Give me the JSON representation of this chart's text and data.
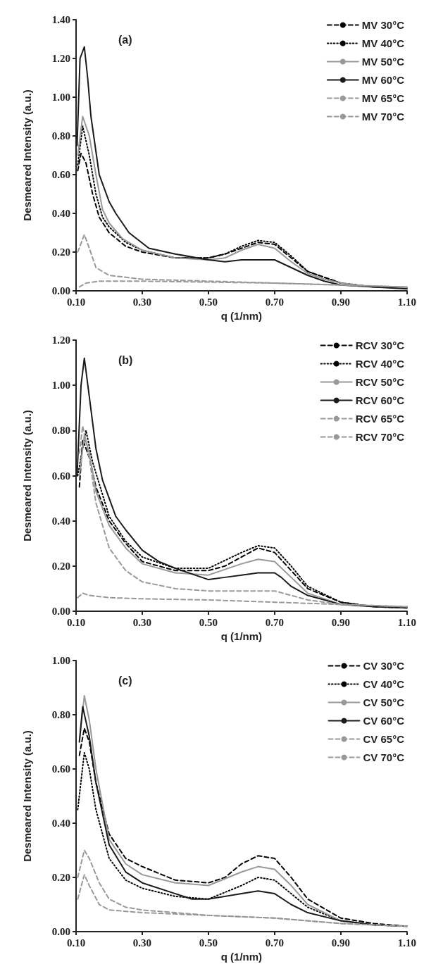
{
  "chart_data": [
    {
      "type": "line",
      "annotations": [
        "(a)"
      ],
      "xlabel": "q (1/nm)",
      "ylabel": "Desmeared Intensity (a.u.)",
      "legend": "top right",
      "marker": "none",
      "xlim": [
        0.1,
        1.1
      ],
      "xticks": [
        {
          "value": 0.1,
          "label": "0.10"
        },
        {
          "value": 0.3,
          "label": "0.30"
        },
        {
          "value": 0.5,
          "label": "0.50"
        },
        {
          "value": 0.7,
          "label": "0.70"
        },
        {
          "value": 0.9,
          "label": "0.90"
        },
        {
          "value": 1.1,
          "label": "1.10"
        }
      ],
      "ylim": [
        0,
        1.4
      ],
      "yticks": [
        {
          "value": 0,
          "label": "0.00"
        },
        {
          "value": 0.2,
          "label": "0.20"
        },
        {
          "value": 0.4,
          "label": "0.40"
        },
        {
          "value": 0.6,
          "label": "0.60"
        },
        {
          "value": 0.8,
          "label": "0.80"
        },
        {
          "value": 1,
          "label": "1.00"
        },
        {
          "value": 1.2,
          "label": "1.20"
        },
        {
          "value": 1.4,
          "label": "1.40"
        }
      ],
      "series": [
        {
          "name": "MV 30°C",
          "color": "#000000",
          "line_style": "dashed",
          "x": [
            0.105,
            0.115,
            0.13,
            0.15,
            0.17,
            0.2,
            0.25,
            0.3,
            0.4,
            0.5,
            0.55,
            0.6,
            0.65,
            0.7,
            0.75,
            0.8,
            0.85,
            0.9,
            1.0,
            1.1
          ],
          "values": [
            0.62,
            0.71,
            0.66,
            0.5,
            0.38,
            0.3,
            0.23,
            0.2,
            0.17,
            0.17,
            0.19,
            0.22,
            0.25,
            0.24,
            0.17,
            0.1,
            0.07,
            0.04,
            0.02,
            0.015
          ]
        },
        {
          "name": "MV 40°C",
          "color": "#000000",
          "line_style": "dotted",
          "x": [
            0.105,
            0.12,
            0.14,
            0.16,
            0.18,
            0.2,
            0.25,
            0.3,
            0.4,
            0.5,
            0.55,
            0.6,
            0.65,
            0.7,
            0.75,
            0.8,
            0.85,
            0.9,
            1.0,
            1.1
          ],
          "values": [
            0.65,
            0.85,
            0.7,
            0.5,
            0.38,
            0.33,
            0.25,
            0.21,
            0.17,
            0.17,
            0.19,
            0.23,
            0.26,
            0.25,
            0.18,
            0.1,
            0.07,
            0.04,
            0.02,
            0.015
          ]
        },
        {
          "name": "MV 50°C",
          "color": "#999999",
          "line_style": "solid",
          "x": [
            0.105,
            0.12,
            0.14,
            0.16,
            0.18,
            0.2,
            0.24,
            0.3,
            0.4,
            0.5,
            0.55,
            0.6,
            0.65,
            0.7,
            0.75,
            0.8,
            0.85,
            0.9,
            1.0,
            1.1
          ],
          "values": [
            0.7,
            0.9,
            0.8,
            0.6,
            0.42,
            0.35,
            0.27,
            0.21,
            0.17,
            0.16,
            0.17,
            0.21,
            0.24,
            0.22,
            0.15,
            0.09,
            0.06,
            0.04,
            0.02,
            0.015
          ]
        },
        {
          "name": "MV 60°C",
          "color": "#1a1a1a",
          "line_style": "solid",
          "x": [
            0.103,
            0.112,
            0.125,
            0.135,
            0.145,
            0.17,
            0.2,
            0.22,
            0.26,
            0.32,
            0.4,
            0.5,
            0.55,
            0.6,
            0.65,
            0.7,
            0.75,
            0.8,
            0.85,
            0.9,
            1.0,
            1.1
          ],
          "values": [
            0.75,
            1.2,
            1.26,
            1.1,
            0.9,
            0.6,
            0.46,
            0.4,
            0.3,
            0.22,
            0.19,
            0.16,
            0.15,
            0.16,
            0.16,
            0.16,
            0.12,
            0.08,
            0.05,
            0.03,
            0.02,
            0.01
          ]
        },
        {
          "name": "MV 65°C",
          "color": "#999999",
          "line_style": "dashed",
          "x": [
            0.105,
            0.125,
            0.14,
            0.16,
            0.2,
            0.3,
            0.5,
            0.7,
            0.9,
            1.1
          ],
          "values": [
            0.2,
            0.29,
            0.22,
            0.12,
            0.08,
            0.06,
            0.05,
            0.04,
            0.03,
            0.02
          ]
        },
        {
          "name": "MV 70°C",
          "color": "#999999",
          "line_style": "dashed",
          "x": [
            0.11,
            0.13,
            0.17,
            0.3,
            0.5,
            0.7,
            0.9,
            1.1
          ],
          "values": [
            0.02,
            0.04,
            0.05,
            0.05,
            0.045,
            0.04,
            0.03,
            0.02
          ]
        }
      ]
    },
    {
      "type": "line",
      "annotations": [
        "(b)"
      ],
      "xlabel": "q (1/nm)",
      "ylabel": "Desmeared Intensity (a.u.)",
      "legend": "top right",
      "marker": "none",
      "xlim": [
        0.1,
        1.1
      ],
      "xticks": [
        {
          "value": 0.1,
          "label": "0.10"
        },
        {
          "value": 0.3,
          "label": "0.30"
        },
        {
          "value": 0.5,
          "label": "0.50"
        },
        {
          "value": 0.7,
          "label": "0.70"
        },
        {
          "value": 0.9,
          "label": "0.90"
        },
        {
          "value": 1.1,
          "label": "1.10"
        }
      ],
      "ylim": [
        0,
        1.2
      ],
      "yticks": [
        {
          "value": 0,
          "label": "0.00"
        },
        {
          "value": 0.2,
          "label": "0.20"
        },
        {
          "value": 0.4,
          "label": "0.40"
        },
        {
          "value": 0.6,
          "label": "0.60"
        },
        {
          "value": 0.8,
          "label": "0.80"
        },
        {
          "value": 1,
          "label": "1.00"
        },
        {
          "value": 1.2,
          "label": "1.20"
        }
      ],
      "series": [
        {
          "name": "RCV 30°C",
          "color": "#000000",
          "line_style": "dashed",
          "x": [
            0.11,
            0.12,
            0.14,
            0.16,
            0.2,
            0.25,
            0.3,
            0.4,
            0.5,
            0.55,
            0.6,
            0.65,
            0.7,
            0.75,
            0.8,
            0.9,
            1.0,
            1.1
          ],
          "values": [
            0.55,
            0.76,
            0.68,
            0.55,
            0.4,
            0.3,
            0.22,
            0.18,
            0.18,
            0.2,
            0.24,
            0.28,
            0.26,
            0.18,
            0.1,
            0.04,
            0.02,
            0.015
          ]
        },
        {
          "name": "RCV 40°C",
          "color": "#000000",
          "line_style": "dotted",
          "x": [
            0.105,
            0.13,
            0.15,
            0.2,
            0.25,
            0.3,
            0.4,
            0.5,
            0.6,
            0.65,
            0.7,
            0.75,
            0.8,
            0.9,
            1.0,
            1.1
          ],
          "values": [
            0.6,
            0.8,
            0.66,
            0.42,
            0.31,
            0.24,
            0.19,
            0.19,
            0.26,
            0.29,
            0.28,
            0.2,
            0.11,
            0.04,
            0.02,
            0.015
          ]
        },
        {
          "name": "RCV 50°C",
          "color": "#999999",
          "line_style": "solid",
          "x": [
            0.11,
            0.125,
            0.14,
            0.16,
            0.2,
            0.25,
            0.3,
            0.4,
            0.5,
            0.6,
            0.65,
            0.7,
            0.75,
            0.8,
            0.9,
            1.1
          ],
          "values": [
            0.6,
            0.78,
            0.7,
            0.53,
            0.38,
            0.28,
            0.21,
            0.17,
            0.16,
            0.21,
            0.23,
            0.22,
            0.15,
            0.08,
            0.03,
            0.015
          ]
        },
        {
          "name": "RCV 60°C",
          "color": "#1a1a1a",
          "line_style": "solid",
          "x": [
            0.103,
            0.115,
            0.125,
            0.14,
            0.16,
            0.18,
            0.2,
            0.22,
            0.25,
            0.3,
            0.35,
            0.4,
            0.5,
            0.55,
            0.6,
            0.65,
            0.7,
            0.72,
            0.75,
            0.8,
            0.9,
            1.0,
            1.1
          ],
          "values": [
            0.6,
            1.0,
            1.12,
            0.95,
            0.72,
            0.58,
            0.5,
            0.42,
            0.36,
            0.27,
            0.22,
            0.19,
            0.14,
            0.15,
            0.16,
            0.17,
            0.17,
            0.15,
            0.11,
            0.07,
            0.03,
            0.02,
            0.015
          ]
        },
        {
          "name": "RCV 65°C",
          "color": "#999999",
          "line_style": "dashed",
          "x": [
            0.11,
            0.12,
            0.14,
            0.16,
            0.2,
            0.25,
            0.3,
            0.4,
            0.5,
            0.6,
            0.7,
            0.75,
            0.8,
            0.9,
            1.1
          ],
          "values": [
            0.7,
            0.82,
            0.68,
            0.48,
            0.28,
            0.18,
            0.13,
            0.1,
            0.09,
            0.09,
            0.09,
            0.07,
            0.05,
            0.03,
            0.02
          ]
        },
        {
          "name": "RCV 70°C",
          "color": "#999999",
          "line_style": "dashed",
          "x": [
            0.105,
            0.12,
            0.14,
            0.2,
            0.3,
            0.5,
            0.7,
            0.9,
            1.1
          ],
          "values": [
            0.06,
            0.08,
            0.07,
            0.06,
            0.055,
            0.05,
            0.04,
            0.03,
            0.02
          ]
        }
      ]
    },
    {
      "type": "line",
      "annotations": [
        "(c)"
      ],
      "xlabel": "q (1/nm)",
      "ylabel": "Desmeared Intensity (a.u.)",
      "legend": "top right",
      "marker": "none",
      "xlim": [
        0.1,
        1.1
      ],
      "xticks": [
        {
          "value": 0.1,
          "label": "0.10"
        },
        {
          "value": 0.3,
          "label": "0.30"
        },
        {
          "value": 0.5,
          "label": "0.50"
        },
        {
          "value": 0.7,
          "label": "0.70"
        },
        {
          "value": 0.9,
          "label": "0.90"
        },
        {
          "value": 1.1,
          "label": "1.10"
        }
      ],
      "ylim": [
        0,
        1
      ],
      "yticks": [
        {
          "value": 0,
          "label": "0.00"
        },
        {
          "value": 0.2,
          "label": "0.20"
        },
        {
          "value": 0.4,
          "label": "0.40"
        },
        {
          "value": 0.6,
          "label": "0.60"
        },
        {
          "value": 0.8,
          "label": "0.80"
        },
        {
          "value": 1,
          "label": "1.00"
        }
      ],
      "series": [
        {
          "name": "CV 30°C",
          "color": "#000000",
          "line_style": "dashed",
          "x": [
            0.11,
            0.125,
            0.14,
            0.16,
            0.2,
            0.25,
            0.3,
            0.4,
            0.5,
            0.55,
            0.6,
            0.65,
            0.7,
            0.75,
            0.8,
            0.9,
            1.0,
            1.1
          ],
          "values": [
            0.65,
            0.75,
            0.7,
            0.55,
            0.36,
            0.27,
            0.24,
            0.19,
            0.18,
            0.2,
            0.25,
            0.28,
            0.27,
            0.2,
            0.12,
            0.05,
            0.03,
            0.02
          ]
        },
        {
          "name": "CV 40°C",
          "color": "#000000",
          "line_style": "dotted",
          "x": [
            0.105,
            0.125,
            0.14,
            0.16,
            0.2,
            0.25,
            0.3,
            0.4,
            0.5,
            0.6,
            0.65,
            0.7,
            0.75,
            0.8,
            0.9,
            1.0,
            1.1
          ],
          "values": [
            0.45,
            0.66,
            0.6,
            0.45,
            0.27,
            0.19,
            0.16,
            0.13,
            0.12,
            0.17,
            0.2,
            0.19,
            0.14,
            0.09,
            0.04,
            0.025,
            0.02
          ]
        },
        {
          "name": "CV 50°C",
          "color": "#999999",
          "line_style": "solid",
          "x": [
            0.11,
            0.125,
            0.14,
            0.16,
            0.2,
            0.25,
            0.3,
            0.4,
            0.5,
            0.6,
            0.65,
            0.7,
            0.75,
            0.8,
            0.9,
            1.0,
            1.1
          ],
          "values": [
            0.7,
            0.87,
            0.78,
            0.6,
            0.34,
            0.25,
            0.21,
            0.18,
            0.17,
            0.22,
            0.24,
            0.23,
            0.17,
            0.1,
            0.04,
            0.025,
            0.02
          ]
        },
        {
          "name": "CV 60°C",
          "color": "#1a1a1a",
          "line_style": "solid",
          "x": [
            0.11,
            0.12,
            0.14,
            0.16,
            0.2,
            0.25,
            0.3,
            0.4,
            0.45,
            0.5,
            0.6,
            0.65,
            0.7,
            0.75,
            0.8,
            0.9,
            1.0,
            1.1
          ],
          "values": [
            0.7,
            0.83,
            0.72,
            0.55,
            0.32,
            0.22,
            0.18,
            0.14,
            0.12,
            0.12,
            0.14,
            0.15,
            0.14,
            0.1,
            0.07,
            0.04,
            0.025,
            0.02
          ]
        },
        {
          "name": "CV 65°C",
          "color": "#999999",
          "line_style": "dashed",
          "x": [
            0.105,
            0.125,
            0.14,
            0.17,
            0.2,
            0.25,
            0.3,
            0.4,
            0.5,
            0.7,
            0.9,
            1.1
          ],
          "values": [
            0.2,
            0.3,
            0.27,
            0.18,
            0.12,
            0.09,
            0.08,
            0.07,
            0.06,
            0.05,
            0.03,
            0.02
          ]
        },
        {
          "name": "CV 70°C",
          "color": "#999999",
          "line_style": "dashed",
          "x": [
            0.105,
            0.125,
            0.14,
            0.17,
            0.2,
            0.3,
            0.5,
            0.7,
            0.9,
            1.1
          ],
          "values": [
            0.12,
            0.21,
            0.17,
            0.1,
            0.08,
            0.07,
            0.06,
            0.05,
            0.03,
            0.02
          ]
        }
      ]
    }
  ]
}
